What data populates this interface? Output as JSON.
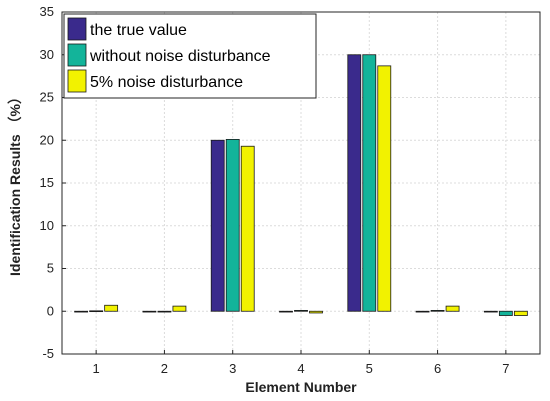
{
  "chart_data": {
    "type": "bar",
    "title": "",
    "xlabel": "Element Number",
    "ylabel": "Identification Results （%）",
    "categories": [
      "1",
      "2",
      "3",
      "4",
      "5",
      "6",
      "7"
    ],
    "ylim": [
      -5,
      35
    ],
    "yticks": [
      "-5",
      "0",
      "5",
      "10",
      "15",
      "20",
      "25",
      "30",
      "35"
    ],
    "grid": true,
    "legend_position": "top-left",
    "series": [
      {
        "name": "the true value",
        "color": "#3a2a8c",
        "values": [
          0,
          0,
          20,
          0,
          30,
          0,
          0
        ]
      },
      {
        "name": "without noise disturbance",
        "color": "#13b49a",
        "values": [
          0.05,
          0.0,
          20.1,
          0.1,
          30.0,
          0.1,
          -0.5
        ]
      },
      {
        "name": "5% noise disturbance",
        "color": "#f2f200",
        "values": [
          0.7,
          0.6,
          19.3,
          -0.2,
          28.7,
          0.6,
          -0.5
        ]
      }
    ]
  }
}
